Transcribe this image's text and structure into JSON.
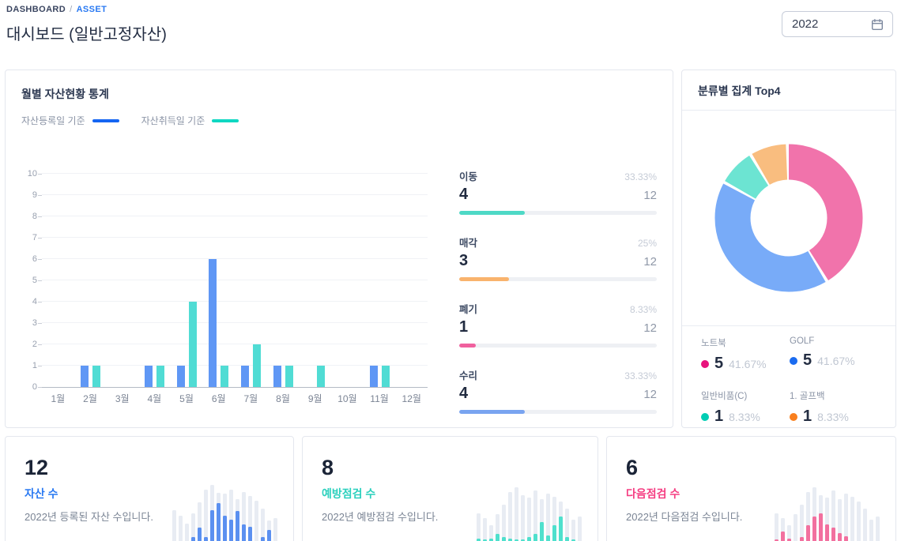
{
  "page": {
    "breadcrumb": {
      "items": [
        "DASHBOARD",
        "ASSET"
      ],
      "separator": "/"
    },
    "title": "대시보드 (일반고정자산)",
    "year_picker": {
      "value": "2022"
    }
  },
  "monthly_card": {
    "title": "월별 자산현황 통계",
    "legend": [
      {
        "label": "자산등록일 기준",
        "color": "#1565f2"
      },
      {
        "label": "자산취득일 기준",
        "color": "#0fd7c2"
      }
    ],
    "stats": [
      {
        "label": "이동",
        "percent": "33.33%",
        "value": "4",
        "total": "12",
        "fill": 33.33,
        "color": "#4ed9c6"
      },
      {
        "label": "매각",
        "percent": "25%",
        "value": "3",
        "total": "12",
        "fill": 25,
        "color": "#f9b36d"
      },
      {
        "label": "폐기",
        "percent": "8.33%",
        "value": "1",
        "total": "12",
        "fill": 8.33,
        "color": "#f0609e"
      },
      {
        "label": "수리",
        "percent": "33.33%",
        "value": "4",
        "total": "12",
        "fill": 33.33,
        "color": "#79a4f0"
      }
    ]
  },
  "category_card": {
    "title": "분류별 집계 Top4"
  },
  "summary_cards": [
    {
      "value": "12",
      "label": "자산 수",
      "label_color": "#2979f2",
      "desc": "2022년 등록된 자산 수입니다.",
      "chart_index": 2
    },
    {
      "value": "8",
      "label": "예방점검 수",
      "label_color": "#2bd0bd",
      "desc": "2022년 예방점검 수입니다.",
      "chart_index": 3
    },
    {
      "value": "6",
      "label": "다음점검 수",
      "label_color": "#f53e82",
      "desc": "2022년 다음점검 수입니다.",
      "chart_index": 4
    }
  ],
  "chart_data": [
    {
      "id": "monthly-bars",
      "type": "bar",
      "title": "월별 자산현황 통계",
      "categories": [
        "1월",
        "2월",
        "3월",
        "4월",
        "5월",
        "6월",
        "7월",
        "8월",
        "9월",
        "10월",
        "11월",
        "12월"
      ],
      "series": [
        {
          "name": "자산등록일 기준",
          "color": "#5f97f5",
          "values": [
            0,
            1,
            0,
            1,
            1,
            6,
            1,
            1,
            0,
            0,
            1,
            0
          ]
        },
        {
          "name": "자산취득일 기준",
          "color": "#50dcd4",
          "values": [
            0,
            1,
            0,
            1,
            4,
            1,
            2,
            1,
            1,
            0,
            1,
            0
          ]
        }
      ],
      "ylim": [
        0,
        10
      ],
      "ytick_step": 1,
      "grid": true,
      "legend_position": "top"
    },
    {
      "id": "category-donut",
      "type": "pie",
      "title": "분류별 집계 Top4",
      "total": 12,
      "segments": [
        {
          "label": "노트북",
          "value": 5,
          "percent": "41.67%",
          "arc_color": "#f173ab",
          "dot_color": "#e8137d"
        },
        {
          "label": "GOLF",
          "value": 5,
          "percent": "41.67%",
          "arc_color": "#78abf8",
          "dot_color": "#1a6bf0"
        },
        {
          "label": "일반비품(C)",
          "value": 1,
          "percent": "8.33%",
          "arc_color": "#6ce4d2",
          "dot_color": "#00cdb4"
        },
        {
          "label": "1. 골프백",
          "value": 1,
          "percent": "8.33%",
          "arc_color": "#f9bd7f",
          "dot_color": "#f97f1e"
        }
      ]
    },
    {
      "id": "spark-assets",
      "type": "bar",
      "decorative": true,
      "bar_color": "#5b90f0",
      "track_color": "#e8ecf3",
      "bars": [
        [
          52,
          0
        ],
        [
          44,
          0
        ],
        [
          31,
          0
        ],
        [
          47,
          9
        ],
        [
          66,
          24
        ],
        [
          86,
          9
        ],
        [
          94,
          52
        ],
        [
          81,
          64
        ],
        [
          79,
          44
        ],
        [
          86,
          37
        ],
        [
          70,
          51
        ],
        [
          82,
          30
        ],
        [
          76,
          26
        ],
        [
          68,
          0
        ],
        [
          55,
          9
        ],
        [
          36,
          20
        ],
        [
          40,
          0
        ]
      ]
    },
    {
      "id": "spark-preventive",
      "type": "bar",
      "decorative": true,
      "bar_color": "#4fe0cd",
      "track_color": "#e8ecf3",
      "bars": [
        [
          48,
          7
        ],
        [
          40,
          5
        ],
        [
          28,
          7
        ],
        [
          46,
          14
        ],
        [
          62,
          9
        ],
        [
          82,
          7
        ],
        [
          90,
          5
        ],
        [
          77,
          5
        ],
        [
          73,
          9
        ],
        [
          85,
          14
        ],
        [
          70,
          33
        ],
        [
          80,
          12
        ],
        [
          74,
          28
        ],
        [
          67,
          42
        ],
        [
          55,
          9
        ],
        [
          37,
          5
        ],
        [
          42,
          0
        ]
      ]
    },
    {
      "id": "spark-next",
      "type": "bar",
      "decorative": true,
      "bar_color": "#f2709f",
      "track_color": "#e8ecf3",
      "bars": [
        [
          48,
          5
        ],
        [
          40,
          18
        ],
        [
          28,
          7
        ],
        [
          46,
          0
        ],
        [
          62,
          9
        ],
        [
          82,
          28
        ],
        [
          90,
          42
        ],
        [
          77,
          48
        ],
        [
          73,
          30
        ],
        [
          85,
          24
        ],
        [
          70,
          16
        ],
        [
          80,
          10
        ],
        [
          74,
          0
        ],
        [
          67,
          0
        ],
        [
          55,
          0
        ],
        [
          37,
          0
        ],
        [
          42,
          0
        ]
      ]
    }
  ]
}
